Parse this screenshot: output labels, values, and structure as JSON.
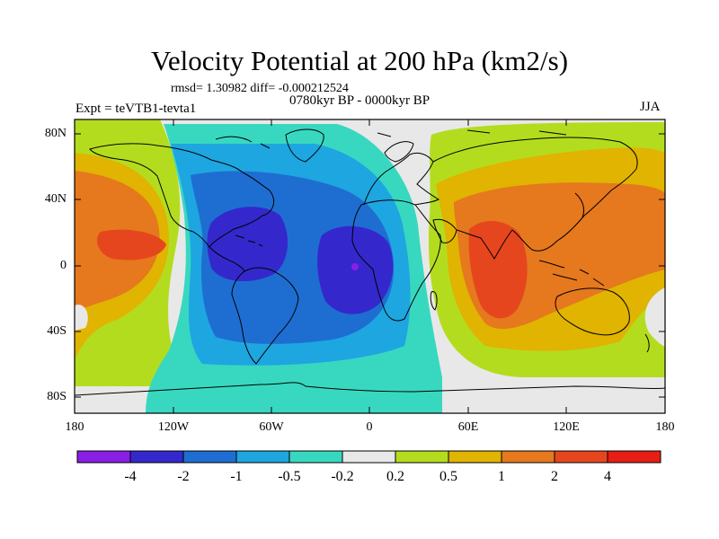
{
  "title": "Velocity Potential at 200 hPa (km2/s)",
  "stats": "rmsd= 1.30982 diff= -0.000212524",
  "experiment": "Expt = teVTB1-tevta1",
  "period": "0780kyr BP - 0000kyr BP",
  "season": "JJA",
  "y_ticks": [
    "80N",
    "40N",
    "0",
    "40S",
    "80S"
  ],
  "x_ticks": [
    "180",
    "120W",
    "60W",
    "0",
    "60E",
    "120E",
    "180"
  ],
  "colorbar": {
    "labels": [
      "-4",
      "-2",
      "-1",
      "-0.5",
      "-0.2",
      "0.2",
      "0.5",
      "1",
      "2",
      "4"
    ],
    "colors": [
      "#8a1ee6",
      "#3428cc",
      "#1e6ed2",
      "#1ea6e0",
      "#38d8c0",
      "#e8e8e8",
      "#b4dc1e",
      "#e0b400",
      "#e6781e",
      "#e6461e",
      "#e61e14"
    ]
  },
  "colors": {
    "map_background": "#e8e8e8",
    "coastline": "#000000"
  }
}
